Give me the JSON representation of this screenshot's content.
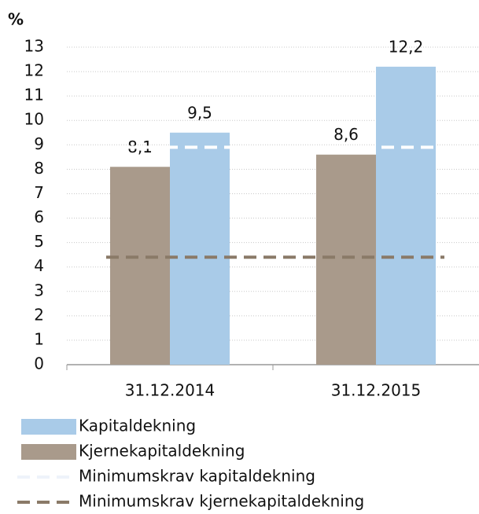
{
  "chart_data": {
    "type": "bar",
    "y_axis_label": "%",
    "categories": [
      "31.12.2014",
      "31.12.2015"
    ],
    "series": [
      {
        "name": "Kjernekapitaldekning",
        "color": "#a99a8b",
        "values": [
          8.1,
          8.6
        ],
        "value_labels": [
          "8,1",
          "8,6"
        ]
      },
      {
        "name": "Kapitaldekning",
        "color": "#a9cbe8",
        "values": [
          9.5,
          12.2
        ],
        "value_labels": [
          "9,5",
          "12,2"
        ]
      }
    ],
    "reference_lines": [
      {
        "name": "Minimumskrav kapitaldekning",
        "color": "#ffffff",
        "value": 8.9
      },
      {
        "name": "Minimumskrav kjernekapitaldekning",
        "color": "#8a7a68",
        "value": 4.4
      }
    ],
    "legend_order": [
      1,
      0
    ],
    "ylim": [
      0,
      13
    ],
    "yticks": [
      0,
      1,
      2,
      3,
      4,
      5,
      6,
      7,
      8,
      9,
      10,
      11,
      12,
      13
    ],
    "grid": true
  }
}
